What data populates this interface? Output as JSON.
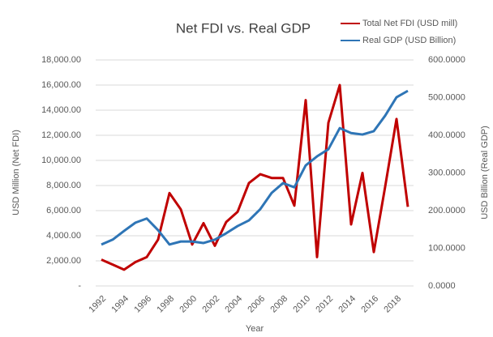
{
  "chart_data": {
    "type": "line",
    "title": "Net FDI vs. Real GDP",
    "xlabel": "Year",
    "ylabel": "USD Million (Net FDI)",
    "y2label": "USD Billion (Real GDP)",
    "categories": [
      "1992",
      null,
      "1994",
      null,
      "1996",
      null,
      "1998",
      null,
      "2000",
      null,
      "2002",
      null,
      "2004",
      null,
      "2006",
      null,
      "2008",
      null,
      "2010",
      null,
      "2012",
      null,
      "2014",
      null,
      "2016",
      null,
      "2018",
      null
    ],
    "series": [
      {
        "name": "Total Net FDI (USD mill)",
        "color": "#c00000",
        "axis": "y",
        "values": [
          2100,
          1700,
          1300,
          1900,
          2300,
          3700,
          7400,
          6100,
          3300,
          5000,
          3200,
          5100,
          5900,
          8200,
          8900,
          8600,
          8600,
          6400,
          14800,
          2300,
          13000,
          16000,
          4900,
          9000,
          2700,
          7900,
          13300,
          6300
        ]
      },
      {
        "name": "Real GDP (USD Billion)",
        "color": "#2e75b6",
        "axis": "y2",
        "values": [
          110,
          123,
          146,
          168,
          179,
          148,
          110,
          118,
          118,
          114,
          123,
          140,
          159,
          174,
          204,
          247,
          273,
          262,
          320,
          344,
          363,
          419,
          406,
          402,
          411,
          452,
          501,
          518
        ]
      }
    ],
    "ylim": [
      0,
      18000
    ],
    "yticks": [
      {
        "value": 0,
        "label": "-"
      },
      {
        "value": 2000,
        "label": "2,000.00"
      },
      {
        "value": 4000,
        "label": "4,000.00"
      },
      {
        "value": 6000,
        "label": "6,000.00"
      },
      {
        "value": 8000,
        "label": "8,000.00"
      },
      {
        "value": 10000,
        "label": "10,000.00"
      },
      {
        "value": 12000,
        "label": "12,000.00"
      },
      {
        "value": 14000,
        "label": "14,000.00"
      },
      {
        "value": 16000,
        "label": "16,000.00"
      },
      {
        "value": 18000,
        "label": "18,000.00"
      }
    ],
    "y2lim": [
      0,
      600
    ],
    "y2ticks": [
      {
        "value": 0,
        "label": "0.0000"
      },
      {
        "value": 100,
        "label": "100.0000"
      },
      {
        "value": 200,
        "label": "200.0000"
      },
      {
        "value": 300,
        "label": "300.0000"
      },
      {
        "value": 400,
        "label": "400.0000"
      },
      {
        "value": 500,
        "label": "500.0000"
      },
      {
        "value": 600,
        "label": "600.0000"
      }
    ],
    "grid": true,
    "legend": "top-right"
  }
}
